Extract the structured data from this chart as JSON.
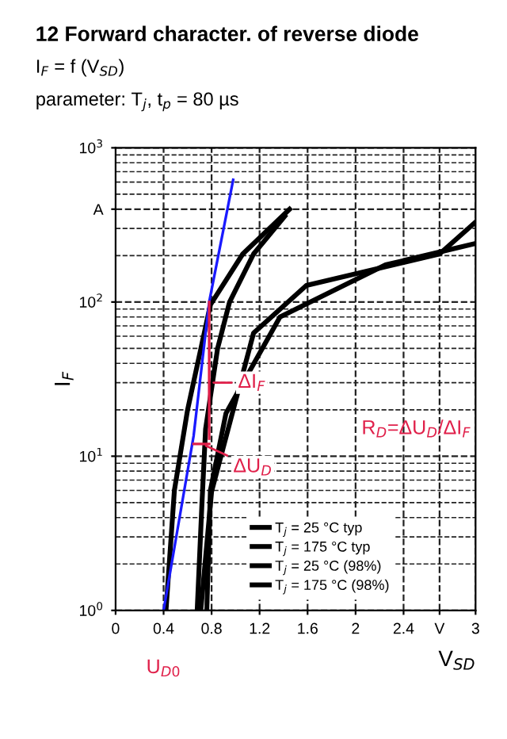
{
  "chart_data": {
    "type": "line",
    "title": "12 Forward character. of reverse diode",
    "subtitle": "I$_{F}$ = f (V$_{SD}$)",
    "xlabel": "V$_{SD}$",
    "ylabel": "I$_{F}$",
    "log": "y",
    "grid": true,
    "legend": "bottom",
    "line_style": "solid",
    "marker": "none",
    "xlim": [
      0,
      3
    ],
    "ylim": [
      1,
      1000
    ],
    "xticks": [
      0,
      0.4,
      0.8,
      1.2,
      1.6,
      2,
      2.4,
      {
        "value": 2.7,
        "label": "V"
      },
      3
    ],
    "yticks": [
      {
        "value": 1,
        "label": "10$^{0}$"
      },
      {
        "value": 10,
        "label": "10$^{1}$"
      },
      {
        "value": 100,
        "label": "10$^{2}$"
      },
      {
        "value": 400,
        "label": "A"
      },
      {
        "value": 1000,
        "label": "10$^{3}$"
      }
    ],
    "series": [
      {
        "name": "T$_{j}$ = 25 °C typ",
        "color": "#000000",
        "x": [
          0.42,
          0.49,
          0.6,
          0.79,
          1.06,
          1.45
        ],
        "values": [
          1,
          6,
          20,
          96,
          205,
          400
        ]
      },
      {
        "name": "T$_{j}$ = 175 °C typ",
        "color": "#000000",
        "x": [
          0.71,
          0.8,
          1.15,
          1.59,
          2.7,
          3
        ],
        "values": [
          1,
          5.9,
          63,
          128,
          205,
          330
        ]
      },
      {
        "name": "T$_{j}$ = 25 °C (98%)",
        "color": "#000000",
        "x": [
          0.68,
          0.72,
          0.75,
          0.85,
          0.95,
          1.15,
          1.41
        ],
        "values": [
          1,
          5,
          15,
          50,
          100,
          205,
          360
        ]
      },
      {
        "name": "T$_{j}$ = 175 °C (98%)",
        "color": "#000000",
        "x": [
          0.76,
          0.79,
          0.92,
          1.37,
          2.25,
          3
        ],
        "values": [
          1,
          6,
          19,
          80,
          174,
          240
        ]
      },
      {
        "color": "#1a1aff",
        "x": [
          0.4,
          0.65,
          0.78,
          0.98
        ],
        "values": [
          1,
          13.5,
          100,
          620
        ]
      },
      {
        "color": "#e0204a",
        "x": [
          0.78,
          0.78
        ],
        "values": [
          100,
          13
        ]
      },
      {
        "color": "#e0204a",
        "x": [
          0.65,
          0.78
        ],
        "values": [
          12,
          12
        ]
      }
    ],
    "annotations": [
      "parameter: T$_{j}$, t$_{p}$ = 80 µs",
      {
        "text": "ΔI$_{F}$",
        "x": 0.78,
        "y": 30
      },
      {
        "text": "ΔU$_{D}$",
        "x": 0.72,
        "y": 12
      },
      "R$_{D}$=ΔU$_{D}$/ΔI$_{F}$",
      {
        "text": "U$_{D0}$",
        "x": 0.4,
        "y": 1
      }
    ]
  }
}
